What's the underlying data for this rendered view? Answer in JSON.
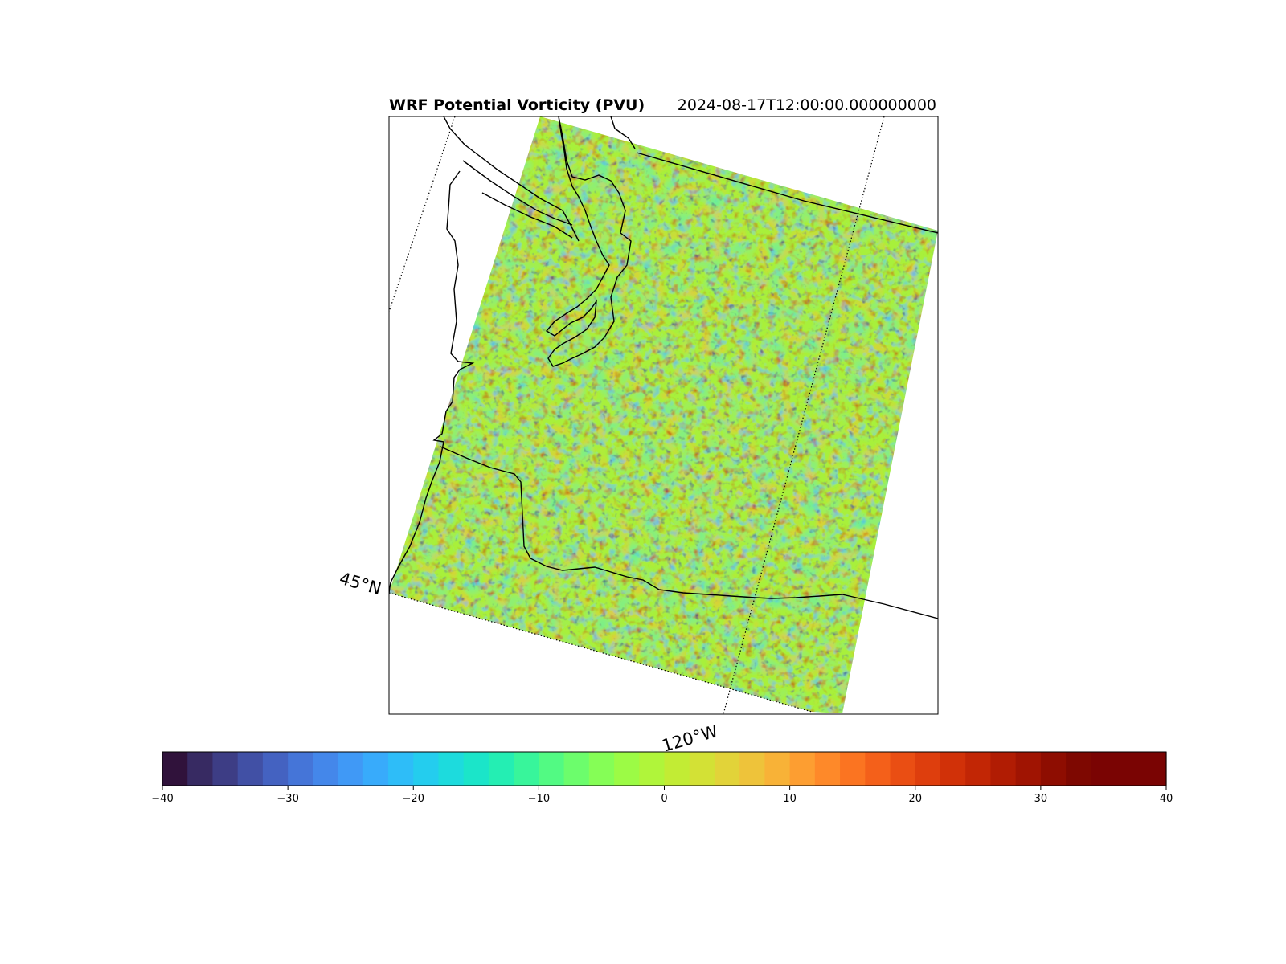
{
  "figure": {
    "title": "WRF Potential Vorticity (PVU)",
    "valid_time": "2024-08-17T12:00:00.000000000"
  },
  "map": {
    "gridline_labels": {
      "latitude": "45°N",
      "longitude": "120°W"
    },
    "field_colors": {
      "background_field": "#a8f03a",
      "land_boundary": "#000000",
      "gridline": "#000000"
    }
  },
  "colorbar": {
    "min": -40,
    "max": 40,
    "levels": 40,
    "tick_values": [
      -40,
      -30,
      -20,
      -10,
      0,
      10,
      20,
      30,
      40
    ],
    "tick_labels": [
      "−40",
      "−30",
      "−20",
      "−10",
      "0",
      "10",
      "20",
      "30",
      "40"
    ],
    "colors": [
      "#30123b",
      "#372a62",
      "#3d3d85",
      "#4150a5",
      "#4462c1",
      "#4575d8",
      "#4487ea",
      "#4099f6",
      "#38abfb",
      "#2ebdf8",
      "#24cdee",
      "#1ddbdd",
      "#1be5c9",
      "#24eeb3",
      "#38f59b",
      "#52fa83",
      "#6cfd6c",
      "#85fe56",
      "#9cfb45",
      "#b0f53a",
      "#c2ec34",
      "#d3e135",
      "#e2d339",
      "#eec33a",
      "#f8b237",
      "#fd9e31",
      "#fe8929",
      "#fb7421",
      "#f4601a",
      "#ea4e13",
      "#de3e0d",
      "#d13108",
      "#c22605",
      "#b11c03",
      "#a01402",
      "#8e0d01",
      "#7e0801",
      "#7a0403",
      "#7a0403",
      "#7a0403"
    ]
  }
}
